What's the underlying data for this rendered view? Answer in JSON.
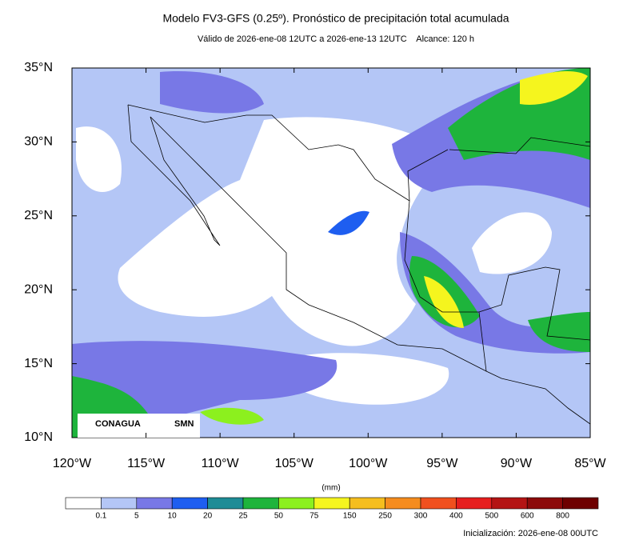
{
  "header": {
    "title": "Modelo FV3-GFS (0.25º). Pronóstico de precipitación total acumulada",
    "subtitle": "Válido de 2026-ene-08 12UTC a 2026-ene-13 12UTC    Alcance: 120 h"
  },
  "map": {
    "xlim": [
      -120,
      -85
    ],
    "ylim": [
      10,
      35
    ],
    "xticks": [
      {
        "value": -120,
        "label": "120°W"
      },
      {
        "value": -115,
        "label": "115°W"
      },
      {
        "value": -110,
        "label": "110°W"
      },
      {
        "value": -105,
        "label": "105°W"
      },
      {
        "value": -100,
        "label": "100°W"
      },
      {
        "value": -95,
        "label": "95°W"
      },
      {
        "value": -90,
        "label": "90°W"
      },
      {
        "value": -85,
        "label": "85°W"
      }
    ],
    "yticks": [
      {
        "value": 10,
        "label": "10°N"
      },
      {
        "value": 15,
        "label": "15°N"
      },
      {
        "value": 20,
        "label": "20°N"
      },
      {
        "value": 25,
        "label": "25°N"
      },
      {
        "value": 30,
        "label": "30°N"
      },
      {
        "value": 35,
        "label": "35°N"
      }
    ]
  },
  "colorbar": {
    "unit": "(mm)",
    "levels": [
      0.1,
      5,
      10,
      20,
      25,
      50,
      75,
      150,
      250,
      300,
      400,
      500,
      600,
      800
    ],
    "colors": [
      "#ffffff",
      "#b4c6f6",
      "#7878e6",
      "#1e5ef0",
      "#1e8c96",
      "#1eb43c",
      "#8cf01e",
      "#f5f51e",
      "#f5be1e",
      "#f58c1e",
      "#f0501e",
      "#e61e1e",
      "#b41414",
      "#8c0a0a",
      "#6e0000"
    ]
  },
  "logos": [
    "CONAGUA",
    "SMN"
  ],
  "footer": "Inicialización: 2026-ene-08 00UTC"
}
